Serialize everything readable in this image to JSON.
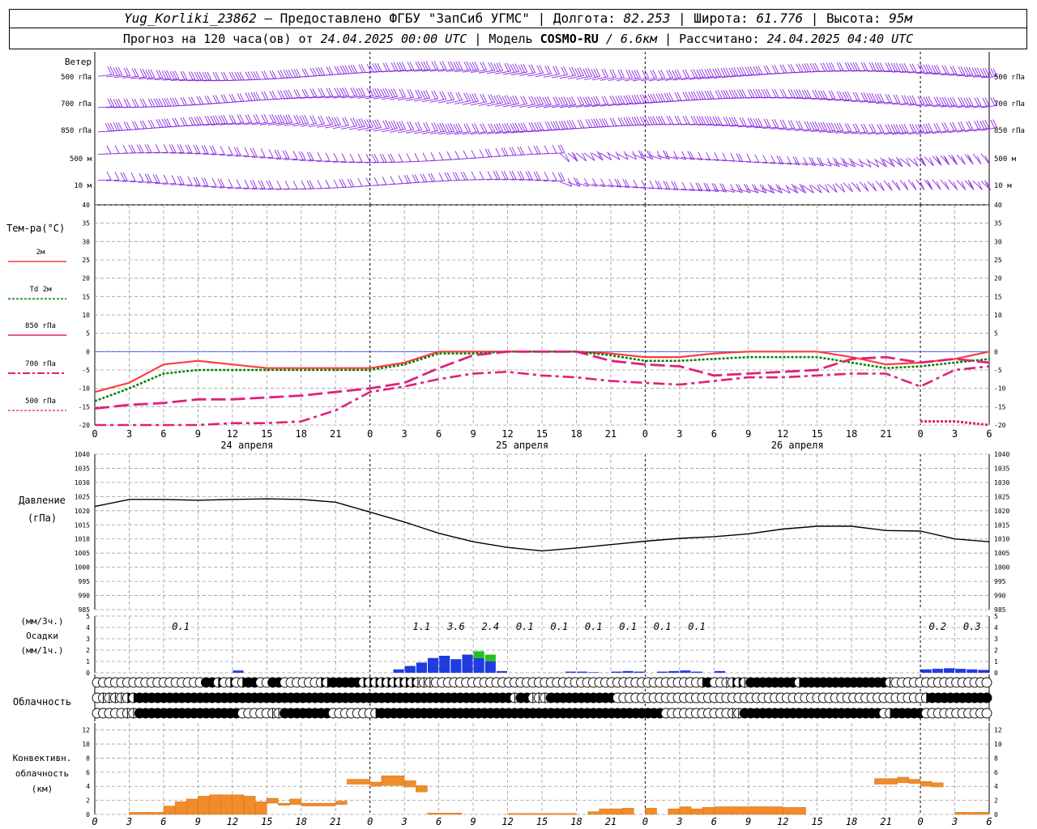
{
  "header": {
    "station": "Yug_Korliki_23862",
    "provider": "– Предоставлено ФГБУ \"ЗапСиб УГМС\"",
    "lon_label": "| Долгота:",
    "lon": "82.253",
    "lat_label": "| Широта:",
    "lat": "61.776",
    "alt_label": "| Высота:",
    "alt": "95м",
    "forecast_label": "Прогноз на 120 часа(ов) от",
    "forecast_start": "24.04.2025 00:00 UTC",
    "model_label": "| Модель",
    "model": "COSMO-RU",
    "resolution": "/ 6.6км",
    "calc_label": "| Рассчитано:",
    "calc_time": "24.04.2025 04:40 UTC"
  },
  "colors": {
    "t2m": "#ff3c3c",
    "td2m": "#008000",
    "t850": "#e0207a",
    "wind": "#8a2be2",
    "pressure": "#000000",
    "precip": "#1f3ce0",
    "precip_snow": "#22c022",
    "conv": "#f08c2c",
    "grid": "#9a9a9a"
  },
  "wind_panel": {
    "title": "Ветер",
    "levels": [
      "500 гПа",
      "700 гПа",
      "850 гПа",
      "500 м",
      "10 м"
    ]
  },
  "temp_panel": {
    "title": "Тем-ра(°C)",
    "legend": [
      "2м",
      "Td  2м",
      "850 гПа",
      "700 гПа",
      "500 гПа"
    ],
    "yticks": [
      "40",
      "35",
      "30",
      "25",
      "20",
      "15",
      "10",
      "5",
      "0",
      "-5",
      "-10",
      "-15",
      "-20"
    ]
  },
  "time_axis": {
    "hour_ticks": [
      "0",
      "3",
      "6",
      "9",
      "12",
      "15",
      "18",
      "21",
      "0",
      "3",
      "6",
      "9",
      "12",
      "15",
      "18",
      "21",
      "0",
      "3",
      "6",
      "9",
      "12",
      "15",
      "18",
      "21",
      "0",
      "3",
      "6"
    ],
    "days": [
      "24 апреля",
      "25 апреля",
      "26 апреля"
    ]
  },
  "pressure_panel": {
    "title": "Давление",
    "unit": "(гПа)",
    "yticks": [
      "1040",
      "1035",
      "1030",
      "1025",
      "1020",
      "1015",
      "1010",
      "1005",
      "1000",
      "995",
      "990",
      "985"
    ]
  },
  "precip_panel": {
    "unit_3h": "(мм/3ч.)",
    "title": "Осадки",
    "unit_1h": "(мм/1ч.)",
    "yticks": [
      "5",
      "4",
      "3",
      "2",
      "1",
      "0"
    ],
    "sum_labels": [
      "0.1",
      "1.1",
      "3.6",
      "2.4",
      "0.1",
      "0.1",
      "0.1",
      "0.1",
      "0.1",
      "0.1",
      "0.2",
      "0.3"
    ]
  },
  "cloud_panel": {
    "title": "Облачность"
  },
  "conv_panel": {
    "title_1": "Конвективн.",
    "title_2": "облачность",
    "unit": "(км)",
    "yticks": [
      "12",
      "10",
      "8",
      "6",
      "4",
      "2",
      "0"
    ]
  },
  "chart_data": [
    {
      "type": "line",
      "title": "Тем-ра(°C)",
      "x_hours": [
        0,
        3,
        6,
        9,
        12,
        15,
        18,
        21,
        24,
        27,
        30,
        33,
        36,
        39,
        42,
        45,
        48,
        51,
        54,
        57,
        60,
        63,
        66,
        69,
        72,
        75,
        78
      ],
      "ylim": [
        -20,
        40
      ],
      "series": [
        {
          "name": "2м",
          "values": [
            -11,
            -8.5,
            -3.5,
            -2.5,
            -3.5,
            -4.5,
            -4.5,
            -4.5,
            -4.5,
            -3,
            0,
            0,
            0,
            0,
            0,
            -0.5,
            -1.5,
            -1.5,
            -0.5,
            0,
            0,
            0,
            -1.5,
            -3.5,
            -3,
            -2,
            0
          ]
        },
        {
          "name": "Td  2м",
          "values": [
            -13.5,
            -10,
            -6,
            -5,
            -5,
            -5,
            -5,
            -5,
            -5,
            -3.5,
            -0.5,
            -0.5,
            0,
            0,
            0,
            -1,
            -2.5,
            -2.5,
            -2,
            -1.5,
            -1.5,
            -1.5,
            -3,
            -4.5,
            -4,
            -3,
            -2
          ]
        },
        {
          "name": "850 гПа",
          "values": [
            -15.5,
            -14.5,
            -14,
            -13,
            -13,
            -12.5,
            -12,
            -11,
            -10,
            -8.5,
            -4.5,
            -1,
            0,
            0,
            0,
            -2.5,
            -3.5,
            -4,
            -6.5,
            -6,
            -5.5,
            -5,
            -2,
            -1.5,
            -3,
            -2,
            -3
          ]
        },
        {
          "name": "700 гПа",
          "values": [
            -21,
            -21,
            -21,
            -20,
            -19.5,
            -19.5,
            -19,
            -16,
            -11,
            -9.5,
            -7.5,
            -6,
            -5.5,
            -6.5,
            -7,
            -8,
            -8.5,
            -9,
            -8,
            -7,
            -7,
            -6.5,
            -6,
            -6,
            -9.5,
            -5,
            -4
          ]
        },
        {
          "name": "500 гПа",
          "values": [
            null,
            null,
            null,
            null,
            null,
            null,
            null,
            null,
            null,
            null,
            null,
            null,
            null,
            null,
            null,
            null,
            null,
            null,
            null,
            null,
            null,
            null,
            null,
            null,
            -19,
            -19,
            -20
          ]
        }
      ]
    },
    {
      "type": "line",
      "title": "Давление",
      "ylim": [
        985,
        1040
      ],
      "x_hours": [
        0,
        3,
        6,
        9,
        12,
        15,
        18,
        21,
        24,
        27,
        30,
        33,
        36,
        39,
        42,
        45,
        48,
        51,
        54,
        57,
        60,
        63,
        66,
        69,
        72,
        75,
        78
      ],
      "series": [
        {
          "name": "Давление",
          "values": [
            1021.5,
            1024,
            1024,
            1023.7,
            1024,
            1024.2,
            1024,
            1023,
            1019.5,
            1016,
            1012,
            1009,
            1007,
            1005.8,
            1006.8,
            1008,
            1009.2,
            1010.2,
            1010.8,
            1011.8,
            1013.5,
            1014.5,
            1014.5,
            1013,
            1012.8,
            1010,
            1009
          ]
        }
      ]
    },
    {
      "type": "bar",
      "title": "Осадки",
      "ylim": [
        0,
        5
      ],
      "x_hours": [
        13,
        27,
        28,
        29,
        30,
        31,
        32,
        33,
        34,
        35,
        36,
        42,
        43,
        44,
        46,
        47,
        48,
        50,
        51,
        52,
        53,
        55,
        73,
        74,
        75,
        76,
        77,
        78
      ],
      "values": [
        0.2,
        0.3,
        0.6,
        0.9,
        1.3,
        1.5,
        1.2,
        1.6,
        1.3,
        1.0,
        0.15,
        0.1,
        0.1,
        0.05,
        0.1,
        0.15,
        0.1,
        0.1,
        0.15,
        0.2,
        0.1,
        0.15,
        0.3,
        0.35,
        0.4,
        0.35,
        0.3,
        0.25
      ],
      "snow_x_hours": [
        34,
        35
      ],
      "snow_values": [
        0.6,
        0.6
      ]
    },
    {
      "type": "bar",
      "title": "Облачность",
      "rows": [
        [
          0,
          0,
          0,
          0,
          0,
          0,
          0,
          0,
          0,
          0,
          0,
          0,
          0,
          0,
          0,
          0,
          0,
          0,
          4,
          4,
          3,
          0,
          3,
          0,
          3,
          4,
          4,
          0,
          0,
          4,
          4,
          0,
          0,
          0,
          0,
          0,
          0,
          3,
          3,
          4,
          4,
          4,
          4,
          4,
          3,
          3,
          3,
          3,
          3,
          3,
          3,
          3,
          3,
          2,
          2,
          2,
          0,
          0,
          0,
          0,
          0,
          0,
          0,
          0,
          0,
          0,
          0,
          0,
          0,
          0,
          0,
          0,
          0,
          0,
          0,
          0,
          0,
          0,
          0,
          0,
          0,
          0,
          0,
          0,
          0,
          0,
          0,
          0,
          0,
          0,
          0,
          0,
          0,
          0,
          0,
          0,
          0,
          0,
          0,
          0,
          3,
          4,
          0,
          0,
          2,
          3,
          3,
          2,
          4,
          4,
          4,
          4,
          4,
          4,
          4,
          4,
          3,
          4,
          4,
          4,
          4,
          4,
          4,
          4,
          4,
          4,
          4,
          4,
          4,
          4,
          4,
          2,
          0,
          0,
          0,
          0,
          0,
          0,
          0,
          0,
          0
        ],
        [
          0,
          2,
          2,
          2,
          2,
          3,
          3,
          4,
          4,
          4,
          4,
          4,
          4,
          4,
          4,
          4,
          4,
          4,
          4,
          4,
          4,
          4,
          4,
          4,
          4,
          4,
          4,
          4,
          4,
          4,
          4,
          4,
          4,
          4,
          4,
          4,
          4,
          4,
          4,
          4,
          4,
          4,
          4,
          4,
          4,
          4,
          4,
          4,
          4,
          4,
          4,
          4,
          4,
          4,
          4,
          4,
          4,
          4,
          4,
          4,
          4,
          4,
          4,
          4,
          4,
          4,
          4,
          4,
          4,
          2,
          4,
          4,
          2,
          2,
          2,
          4,
          4,
          4,
          4,
          4,
          4,
          4,
          4,
          4,
          4,
          4,
          0,
          0,
          0,
          0,
          0,
          0,
          0,
          0,
          0,
          0,
          0,
          0,
          0,
          0,
          0,
          0,
          0,
          0,
          0,
          0,
          0,
          0,
          0,
          0,
          0,
          0,
          0,
          0,
          0,
          0,
          0,
          0,
          0,
          0,
          0,
          0,
          0,
          0,
          0,
          0,
          0,
          0,
          0,
          0,
          0,
          0,
          0,
          0,
          0,
          0,
          0,
          3,
          4,
          4,
          4,
          4,
          4,
          4,
          4,
          4,
          4,
          4,
          4,
          4,
          4,
          4,
          4,
          4,
          4,
          4,
          4,
          4,
          4,
          4,
          4,
          4,
          4,
          0,
          0,
          0,
          0,
          0,
          0,
          4,
          4
        ],
        [
          0,
          0,
          0,
          0,
          0,
          2,
          2,
          4,
          4,
          4,
          4,
          4,
          4,
          4,
          4,
          4,
          4,
          4,
          4,
          4,
          4,
          4,
          4,
          4,
          0,
          0,
          0,
          0,
          0,
          2,
          2,
          4,
          4,
          4,
          4,
          4,
          4,
          4,
          4,
          0,
          0,
          0,
          0,
          0,
          0,
          0,
          3,
          4,
          4,
          4,
          4,
          4,
          4,
          4,
          4,
          4,
          4,
          4,
          4,
          4,
          4,
          4,
          4,
          4,
          4,
          4,
          4,
          4,
          4,
          4,
          4,
          4,
          4,
          4,
          4,
          4,
          4,
          4,
          4,
          4,
          4,
          4,
          4,
          4,
          4,
          4,
          4,
          4,
          4,
          4,
          4,
          4,
          4,
          4,
          0,
          0,
          0,
          0,
          0,
          0,
          0,
          0,
          0,
          0,
          0,
          2,
          2,
          4,
          4,
          4,
          4,
          4,
          4,
          4,
          4,
          4,
          4,
          4,
          4,
          4,
          4,
          4,
          4,
          4,
          4,
          4,
          4,
          4,
          4,
          4,
          0,
          3,
          4,
          4,
          4,
          4,
          4
        ]
      ]
    },
    {
      "type": "bar",
      "title": "Конвективн. облачность",
      "ylim": [
        0,
        13
      ],
      "bars": [
        {
          "from": 3,
          "to": 6,
          "base": 0,
          "top": 0.3
        },
        {
          "from": 6,
          "to": 7,
          "base": 0,
          "top": 1.2
        },
        {
          "from": 7,
          "to": 8,
          "base": 0,
          "top": 1.8
        },
        {
          "from": 8,
          "to": 9,
          "base": 0,
          "top": 2.2
        },
        {
          "from": 9,
          "to": 10,
          "base": 0,
          "top": 2.6
        },
        {
          "from": 10,
          "to": 11,
          "base": 0,
          "top": 2.8
        },
        {
          "from": 11,
          "to": 12,
          "base": 0,
          "top": 2.8
        },
        {
          "from": 12,
          "to": 13,
          "base": 0,
          "top": 2.8
        },
        {
          "from": 13,
          "to": 14,
          "base": 0,
          "top": 2.6
        },
        {
          "from": 14,
          "to": 15,
          "base": 0,
          "top": 1.8
        },
        {
          "from": 15,
          "to": 16,
          "base": 1.6,
          "top": 2.3
        },
        {
          "from": 16,
          "to": 17,
          "base": 1.3,
          "top": 1.6
        },
        {
          "from": 17,
          "to": 18,
          "base": 1.4,
          "top": 2.2
        },
        {
          "from": 18,
          "to": 21,
          "base": 1.2,
          "top": 1.6
        },
        {
          "from": 21,
          "to": 22,
          "base": 1.4,
          "top": 1.9
        },
        {
          "from": 22,
          "to": 24,
          "base": 4.3,
          "top": 5.0
        },
        {
          "from": 24,
          "to": 25,
          "base": 4.0,
          "top": 4.6
        },
        {
          "from": 25,
          "to": 27,
          "base": 4.1,
          "top": 5.5
        },
        {
          "from": 27,
          "to": 28,
          "base": 3.9,
          "top": 4.8
        },
        {
          "from": 28,
          "to": 29,
          "base": 3.2,
          "top": 4.1
        },
        {
          "from": 29,
          "to": 32,
          "base": 0,
          "top": 0.2
        },
        {
          "from": 36,
          "to": 42,
          "base": 0,
          "top": 0.15
        },
        {
          "from": 43,
          "to": 44,
          "base": 0,
          "top": 0.4
        },
        {
          "from": 44,
          "to": 46,
          "base": 0,
          "top": 0.8
        },
        {
          "from": 46,
          "to": 47,
          "base": 0,
          "top": 0.9
        },
        {
          "from": 48,
          "to": 49,
          "base": 0,
          "top": 0.9
        },
        {
          "from": 50,
          "to": 51,
          "base": 0,
          "top": 0.8
        },
        {
          "from": 51,
          "to": 52,
          "base": 0,
          "top": 1.1
        },
        {
          "from": 52,
          "to": 53,
          "base": 0,
          "top": 0.8
        },
        {
          "from": 53,
          "to": 54,
          "base": 0,
          "top": 1.0
        },
        {
          "from": 54,
          "to": 60,
          "base": 0,
          "top": 1.1
        },
        {
          "from": 60,
          "to": 62,
          "base": 0,
          "top": 1.0
        },
        {
          "from": 68,
          "to": 70,
          "base": 4.3,
          "top": 5.1
        },
        {
          "from": 70,
          "to": 71,
          "base": 4.5,
          "top": 5.3
        },
        {
          "from": 71,
          "to": 72,
          "base": 4.4,
          "top": 5.0
        },
        {
          "from": 72,
          "to": 73,
          "base": 4.0,
          "top": 4.7
        },
        {
          "from": 73,
          "to": 74,
          "base": 3.9,
          "top": 4.5
        },
        {
          "from": 75,
          "to": 78,
          "base": 0,
          "top": 0.3
        }
      ]
    }
  ]
}
